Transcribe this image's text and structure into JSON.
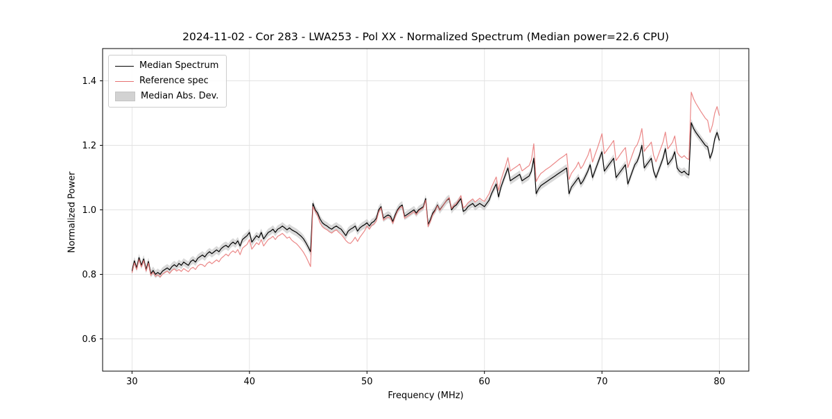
{
  "title": "2024-11-02 - Cor 283 - LWA253 - Pol XX - Normalized Spectrum (Median power=22.6 CPU)",
  "colors": {
    "median_line": "#000000",
    "reference_line": "#e87272",
    "mad_band": "#b9b9b9",
    "grid": "#e2e2e2",
    "axes": "#000000"
  },
  "legend": {
    "items": [
      {
        "label": "Median Spectrum",
        "swatch": "black-line"
      },
      {
        "label": "Reference spec",
        "swatch": "red-line"
      },
      {
        "label": "Median Abs. Dev.",
        "swatch": "gray-band"
      }
    ]
  },
  "chart_data": {
    "type": "line",
    "title": "2024-11-02 - Cor 283 - LWA253 - Pol XX - Normalized Spectrum (Median power=22.6 CPU)",
    "xlabel": "Frequency (MHz)",
    "ylabel": "Normalized Power",
    "xlim": [
      27.5,
      82.5
    ],
    "ylim": [
      0.5,
      1.5
    ],
    "xticks": [
      30,
      40,
      50,
      60,
      70,
      80
    ],
    "yticks": [
      0.6,
      0.8,
      1.0,
      1.2,
      1.4
    ],
    "grid": true,
    "legend_position": "upper-left",
    "x_start": 30.0,
    "x_step": 0.2,
    "band": {
      "name": "Median Abs. Dev.",
      "around_series": "Median Spectrum",
      "halfwidth": 0.012,
      "color": "#b9b9b9",
      "opacity": 0.55
    },
    "series": [
      {
        "name": "Median Spectrum",
        "color": "#000000",
        "values": [
          0.81,
          0.842,
          0.82,
          0.852,
          0.828,
          0.848,
          0.815,
          0.84,
          0.802,
          0.812,
          0.8,
          0.806,
          0.8,
          0.81,
          0.815,
          0.82,
          0.814,
          0.824,
          0.83,
          0.824,
          0.834,
          0.828,
          0.838,
          0.833,
          0.828,
          0.84,
          0.845,
          0.838,
          0.85,
          0.855,
          0.86,
          0.854,
          0.864,
          0.87,
          0.864,
          0.87,
          0.876,
          0.87,
          0.88,
          0.886,
          0.89,
          0.884,
          0.894,
          0.9,
          0.894,
          0.904,
          0.888,
          0.908,
          0.914,
          0.92,
          0.93,
          0.9,
          0.91,
          0.92,
          0.914,
          0.93,
          0.91,
          0.92,
          0.93,
          0.934,
          0.94,
          0.93,
          0.94,
          0.944,
          0.95,
          0.944,
          0.938,
          0.944,
          0.938,
          0.934,
          0.93,
          0.924,
          0.918,
          0.91,
          0.898,
          0.885,
          0.87,
          1.02,
          1.0,
          0.99,
          0.972,
          0.96,
          0.954,
          0.95,
          0.944,
          0.94,
          0.946,
          0.95,
          0.944,
          0.94,
          0.93,
          0.92,
          0.934,
          0.94,
          0.944,
          0.95,
          0.934,
          0.944,
          0.95,
          0.954,
          0.96,
          0.95,
          0.96,
          0.964,
          0.974,
          1.0,
          1.01,
          0.974,
          0.98,
          0.984,
          0.98,
          0.964,
          0.984,
          1.0,
          1.01,
          1.015,
          0.98,
          0.985,
          0.99,
          0.995,
          1.0,
          0.99,
          1.0,
          1.005,
          1.01,
          1.035,
          0.955,
          0.97,
          0.99,
          1.0,
          1.015,
          1.0,
          1.01,
          1.02,
          1.03,
          1.035,
          1.0,
          1.01,
          1.015,
          1.025,
          1.035,
          0.995,
          1.0,
          1.01,
          1.015,
          1.02,
          1.01,
          1.015,
          1.02,
          1.015,
          1.01,
          1.02,
          1.03,
          1.05,
          1.065,
          1.08,
          1.04,
          1.07,
          1.09,
          1.11,
          1.13,
          1.09,
          1.095,
          1.1,
          1.105,
          1.11,
          1.09,
          1.095,
          1.1,
          1.105,
          1.12,
          1.16,
          1.05,
          1.065,
          1.075,
          1.08,
          1.085,
          1.09,
          1.095,
          1.1,
          1.105,
          1.11,
          1.115,
          1.12,
          1.125,
          1.13,
          1.05,
          1.07,
          1.08,
          1.09,
          1.1,
          1.08,
          1.09,
          1.105,
          1.12,
          1.14,
          1.1,
          1.12,
          1.14,
          1.16,
          1.18,
          1.12,
          1.13,
          1.14,
          1.15,
          1.16,
          1.1,
          1.11,
          1.12,
          1.13,
          1.14,
          1.08,
          1.1,
          1.12,
          1.14,
          1.15,
          1.17,
          1.2,
          1.13,
          1.14,
          1.15,
          1.16,
          1.12,
          1.1,
          1.12,
          1.14,
          1.16,
          1.19,
          1.14,
          1.15,
          1.16,
          1.18,
          1.13,
          1.12,
          1.115,
          1.12,
          1.112,
          1.108,
          1.27,
          1.252,
          1.24,
          1.23,
          1.22,
          1.21,
          1.2,
          1.195,
          1.16,
          1.18,
          1.22,
          1.24,
          1.215
        ]
      },
      {
        "name": "Reference spec",
        "color": "#e87272",
        "values": [
          0.805,
          0.836,
          0.815,
          0.846,
          0.823,
          0.843,
          0.81,
          0.835,
          0.797,
          0.807,
          0.794,
          0.799,
          0.792,
          0.801,
          0.806,
          0.81,
          0.803,
          0.812,
          0.817,
          0.81,
          0.815,
          0.809,
          0.818,
          0.813,
          0.808,
          0.818,
          0.822,
          0.815,
          0.826,
          0.831,
          0.83,
          0.824,
          0.834,
          0.839,
          0.833,
          0.839,
          0.845,
          0.839,
          0.85,
          0.856,
          0.863,
          0.857,
          0.867,
          0.873,
          0.867,
          0.877,
          0.861,
          0.881,
          0.887,
          0.893,
          0.908,
          0.878,
          0.888,
          0.898,
          0.892,
          0.908,
          0.888,
          0.898,
          0.908,
          0.912,
          0.918,
          0.908,
          0.918,
          0.922,
          0.927,
          0.92,
          0.912,
          0.916,
          0.906,
          0.9,
          0.895,
          0.887,
          0.878,
          0.868,
          0.855,
          0.84,
          0.824,
          1.01,
          0.995,
          0.982,
          0.96,
          0.948,
          0.942,
          0.938,
          0.932,
          0.928,
          0.934,
          0.938,
          0.93,
          0.924,
          0.915,
          0.905,
          0.898,
          0.896,
          0.904,
          0.915,
          0.902,
          0.915,
          0.925,
          0.935,
          0.95,
          0.94,
          0.952,
          0.956,
          0.966,
          0.994,
          1.006,
          0.968,
          0.974,
          0.978,
          0.974,
          0.958,
          0.978,
          0.996,
          1.006,
          1.01,
          0.974,
          0.979,
          0.984,
          0.989,
          0.995,
          0.985,
          0.996,
          1.001,
          1.006,
          1.03,
          0.948,
          0.964,
          0.985,
          0.996,
          1.013,
          0.998,
          1.009,
          1.02,
          1.031,
          1.038,
          1.004,
          1.014,
          1.02,
          1.03,
          1.044,
          1.006,
          1.012,
          1.022,
          1.028,
          1.034,
          1.024,
          1.03,
          1.036,
          1.03,
          1.026,
          1.038,
          1.05,
          1.07,
          1.086,
          1.102,
          1.06,
          1.092,
          1.114,
          1.136,
          1.162,
          1.12,
          1.126,
          1.131,
          1.136,
          1.142,
          1.121,
          1.126,
          1.132,
          1.137,
          1.155,
          1.205,
          1.088,
          1.102,
          1.113,
          1.118,
          1.124,
          1.129,
          1.134,
          1.14,
          1.146,
          1.152,
          1.158,
          1.163,
          1.168,
          1.174,
          1.094,
          1.113,
          1.123,
          1.133,
          1.148,
          1.128,
          1.138,
          1.154,
          1.168,
          1.19,
          1.148,
          1.17,
          1.19,
          1.212,
          1.236,
          1.174,
          1.184,
          1.194,
          1.204,
          1.215,
          1.153,
          1.163,
          1.174,
          1.184,
          1.193,
          1.131,
          1.152,
          1.172,
          1.192,
          1.202,
          1.222,
          1.252,
          1.181,
          1.192,
          1.2,
          1.21,
          1.169,
          1.149,
          1.17,
          1.19,
          1.21,
          1.241,
          1.189,
          1.199,
          1.209,
          1.229,
          1.178,
          1.168,
          1.162,
          1.168,
          1.16,
          1.156,
          1.365,
          1.344,
          1.33,
          1.318,
          1.306,
          1.295,
          1.284,
          1.277,
          1.24,
          1.262,
          1.3,
          1.32,
          1.292
        ]
      }
    ]
  }
}
